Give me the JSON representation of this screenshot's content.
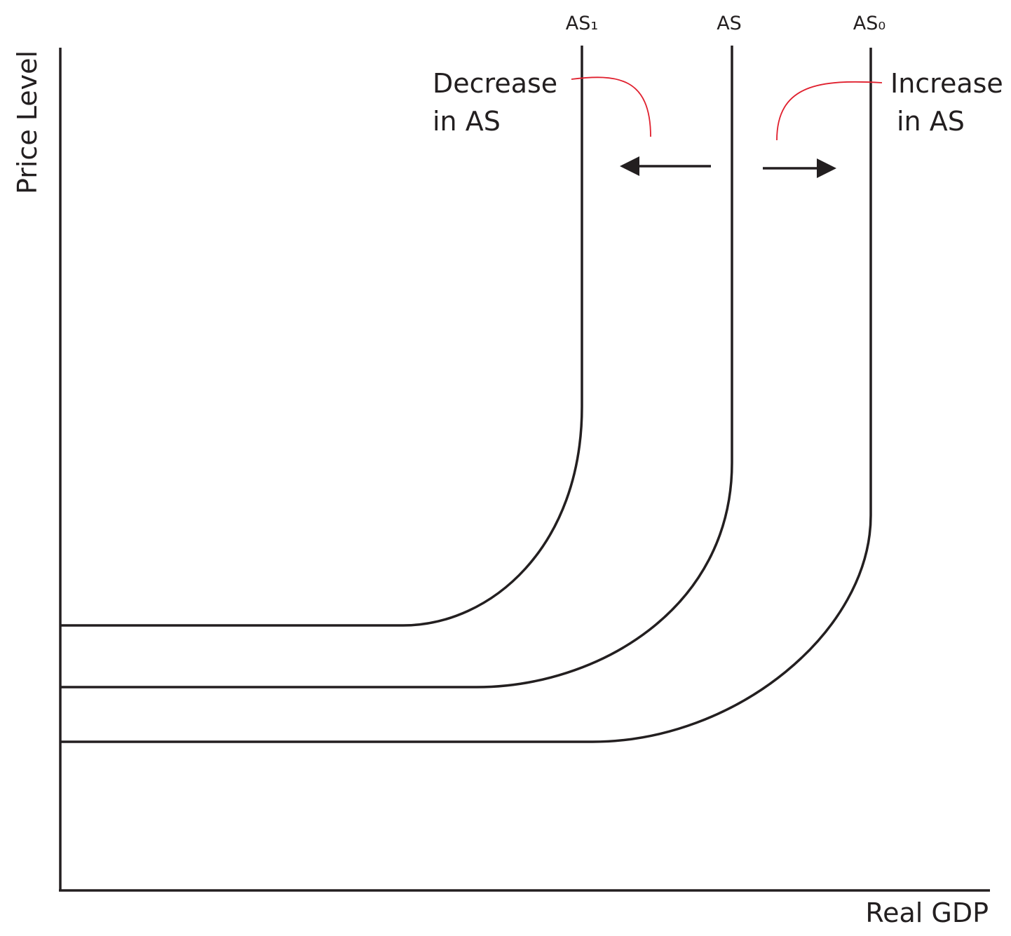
{
  "axes": {
    "y_label": "Price Level",
    "x_label": "Real GDP"
  },
  "curves": [
    {
      "label": "AS₁"
    },
    {
      "label": "AS"
    },
    {
      "label": "AS₀"
    }
  ],
  "annotations": {
    "decrease": [
      "Decrease",
      "in AS"
    ],
    "increase": [
      "Increase",
      "in AS"
    ]
  }
}
